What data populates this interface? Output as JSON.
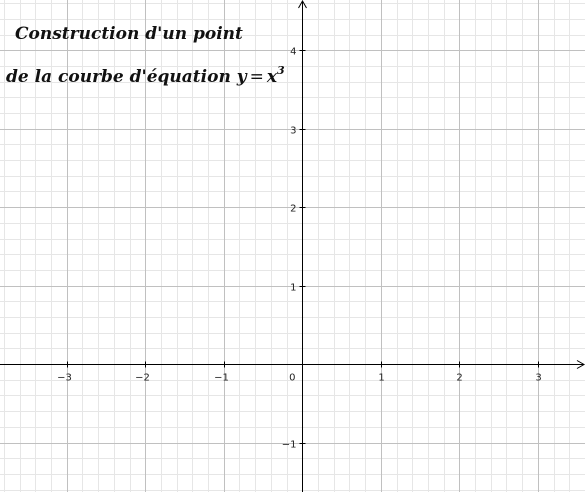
{
  "title": {
    "line1": "Construction d'un point",
    "line2_prefix": "de la courbe d'équation",
    "formula": {
      "lhs": "y",
      "op": "=",
      "base": "x",
      "exponent": "3"
    }
  },
  "graph": {
    "x_range": [
      -3.85,
      3.6
    ],
    "y_range": [
      -1.63,
      4.64
    ],
    "x_ticks": [
      -3,
      -2,
      -1,
      1,
      2,
      3
    ],
    "y_ticks": [
      -1,
      1,
      2,
      3,
      4
    ],
    "origin_label": "0",
    "grid_major": true,
    "grid_minor_step": 0.2,
    "colors": {
      "major": "#c0c0c0",
      "minor": "#e6e6e6",
      "axis": "#000000",
      "background": "#ffffff"
    }
  }
}
